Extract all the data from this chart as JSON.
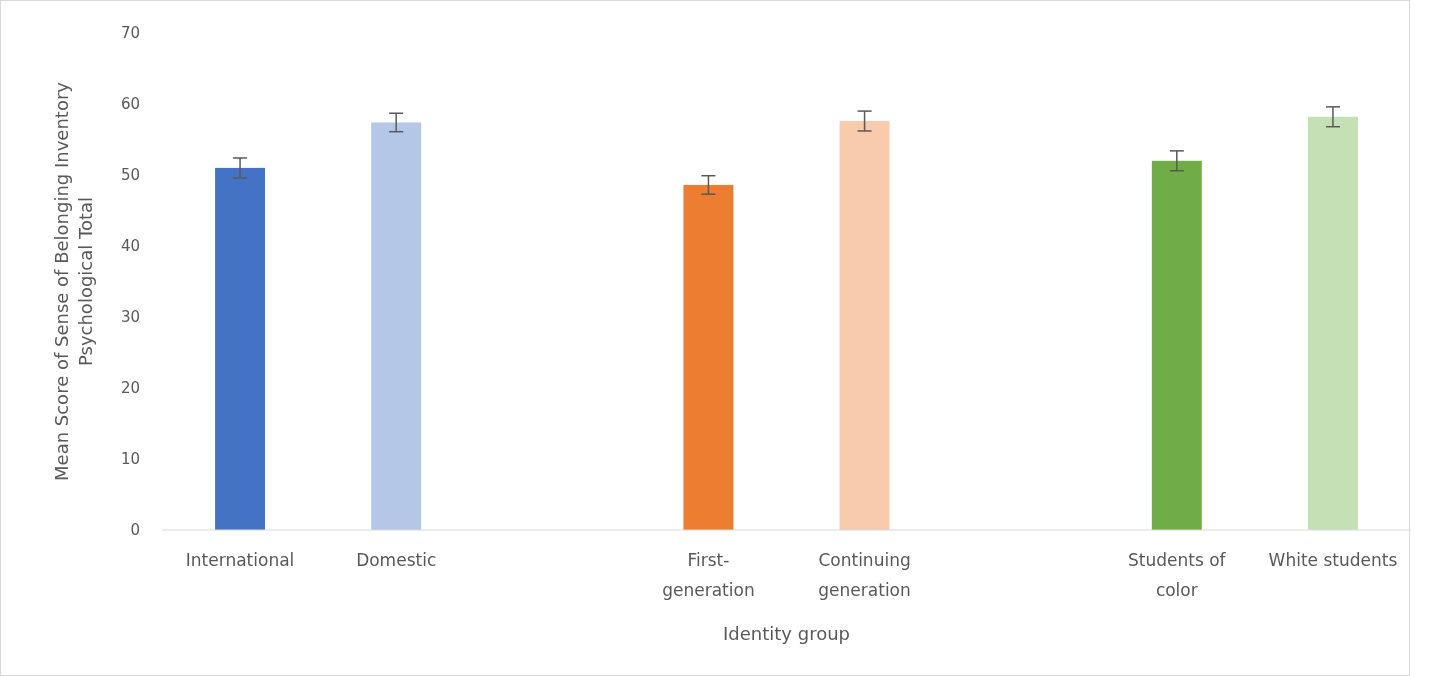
{
  "chart_data": {
    "type": "bar",
    "xlabel": "Identity group",
    "ylabel": "Mean Score of Sense of Belonging Inventory Psychological Total",
    "categories": [
      "International",
      "Domestic",
      null,
      "First-generation",
      "Continuing generation",
      null,
      "Students of color",
      "White students"
    ],
    "values": [
      51.0,
      57.4,
      null,
      48.6,
      57.6,
      null,
      52.0,
      58.2
    ],
    "errors": [
      1.4,
      1.3,
      null,
      1.3,
      1.4,
      null,
      1.4,
      1.4
    ],
    "colors": [
      "#4472c4",
      "#b4c7e7",
      null,
      "#ed7d31",
      "#f8cbad",
      null,
      "#70ad47",
      "#c5e0b4"
    ],
    "ylim": [
      0,
      70
    ],
    "yticks": [
      0,
      10,
      20,
      30,
      40,
      50,
      60,
      70
    ],
    "grid": false
  }
}
